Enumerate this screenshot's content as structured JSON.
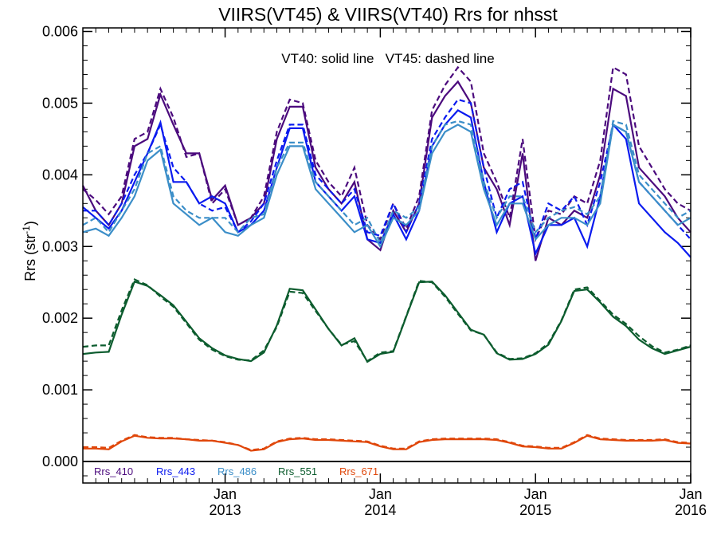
{
  "chart_data": {
    "type": "line",
    "title": "VIIRS(VT45) & VIIRS(VT40)  Rrs for nhsst",
    "annotation": "VT40: solid line   VT45: dashed line",
    "ylabel": "Rrs (str",
    "ylabel_sup": "-1",
    "ylabel_tail": ")",
    "ylim": [
      -0.0003,
      0.00605
    ],
    "xlim": [
      "2012-02",
      "2016-01"
    ],
    "y_ticks": [
      "0.000",
      "0.001",
      "0.002",
      "0.003",
      "0.004",
      "0.005",
      "0.006"
    ],
    "x_ticks": [
      {
        "month": "Jan",
        "year": "2013",
        "date": "2013-01"
      },
      {
        "month": "Jan",
        "year": "2014",
        "date": "2014-01"
      },
      {
        "month": "Jan",
        "year": "2015",
        "date": "2015-01"
      },
      {
        "month": "Jan",
        "year": "2016",
        "date": "2016-01"
      }
    ],
    "grid": false,
    "legend_position": "bottom-left",
    "x": [
      "2012-02",
      "2012-03",
      "2012-04",
      "2012-05",
      "2012-06",
      "2012-07",
      "2012-08",
      "2012-09",
      "2012-10",
      "2012-11",
      "2012-12",
      "2013-01",
      "2013-02",
      "2013-03",
      "2013-04",
      "2013-05",
      "2013-06",
      "2013-07",
      "2013-08",
      "2013-09",
      "2013-10",
      "2013-11",
      "2013-12",
      "2014-01",
      "2014-02",
      "2014-03",
      "2014-04",
      "2014-05",
      "2014-06",
      "2014-07",
      "2014-08",
      "2014-09",
      "2014-10",
      "2014-11",
      "2014-12",
      "2015-01",
      "2015-02",
      "2015-03",
      "2015-04",
      "2015-05",
      "2015-06",
      "2015-07",
      "2015-08",
      "2015-09",
      "2015-10",
      "2015-11",
      "2015-12",
      "2016-01"
    ],
    "series": [
      {
        "name": "Rrs_410",
        "color": "#4b0a7d",
        "vt40": [
          0.00385,
          0.0035,
          0.0033,
          0.0036,
          0.0044,
          0.0045,
          0.00512,
          0.0047,
          0.0043,
          0.0043,
          0.00365,
          0.00385,
          0.0033,
          0.0034,
          0.0036,
          0.0045,
          0.00495,
          0.00495,
          0.0041,
          0.0038,
          0.0036,
          0.0039,
          0.0031,
          0.00295,
          0.0035,
          0.0032,
          0.0036,
          0.0048,
          0.0051,
          0.0053,
          0.005,
          0.0041,
          0.0038,
          0.0033,
          0.0043,
          0.0028,
          0.0034,
          0.0033,
          0.0035,
          0.0034,
          0.004,
          0.0052,
          0.0051,
          0.0041,
          0.0039,
          0.0037,
          0.0034,
          0.0032
        ],
        "vt45": [
          0.0038,
          0.00365,
          0.00345,
          0.0037,
          0.0045,
          0.0046,
          0.0052,
          0.0048,
          0.00425,
          0.0043,
          0.0036,
          0.0038,
          0.0033,
          0.0034,
          0.0037,
          0.0046,
          0.00505,
          0.005,
          0.0042,
          0.0039,
          0.0037,
          0.0041,
          0.0033,
          0.0031,
          0.0036,
          0.00325,
          0.0037,
          0.0049,
          0.00525,
          0.0055,
          0.0053,
          0.0043,
          0.0039,
          0.0034,
          0.0045,
          0.0031,
          0.0035,
          0.00345,
          0.0037,
          0.0036,
          0.0042,
          0.0055,
          0.0054,
          0.0044,
          0.0041,
          0.0038,
          0.0036,
          0.0035
        ]
      },
      {
        "name": "Rrs_443",
        "color": "#0a1aef",
        "vt40": [
          0.00355,
          0.0034,
          0.00325,
          0.0035,
          0.0039,
          0.0043,
          0.00473,
          0.0039,
          0.0039,
          0.0036,
          0.0037,
          0.0036,
          0.0032,
          0.0033,
          0.0035,
          0.0041,
          0.00465,
          0.00465,
          0.0039,
          0.0037,
          0.0035,
          0.0037,
          0.0031,
          0.00305,
          0.00345,
          0.0031,
          0.0035,
          0.0044,
          0.0047,
          0.0049,
          0.0048,
          0.0039,
          0.0032,
          0.0036,
          0.0037,
          0.0029,
          0.0033,
          0.0033,
          0.0034,
          0.003,
          0.0037,
          0.0047,
          0.0045,
          0.0036,
          0.0034,
          0.0032,
          0.00305,
          0.00285
        ],
        "vt45": [
          0.0035,
          0.0035,
          0.0033,
          0.0036,
          0.004,
          0.0043,
          0.0047,
          0.0041,
          0.0039,
          0.0036,
          0.0035,
          0.00355,
          0.0032,
          0.00335,
          0.0036,
          0.0042,
          0.0047,
          0.0047,
          0.004,
          0.0038,
          0.0036,
          0.0038,
          0.0032,
          0.00315,
          0.0036,
          0.0032,
          0.0036,
          0.0045,
          0.0048,
          0.00505,
          0.005,
          0.0041,
          0.0034,
          0.0038,
          0.0039,
          0.0031,
          0.0036,
          0.0035,
          0.0037,
          0.0033,
          0.0039,
          0.0047,
          0.0046,
          0.0039,
          0.0037,
          0.0035,
          0.0033,
          0.0031
        ]
      },
      {
        "name": "Rrs_486",
        "color": "#3b8ec8",
        "vt40": [
          0.0032,
          0.00325,
          0.00315,
          0.0034,
          0.0037,
          0.0042,
          0.00435,
          0.0036,
          0.00345,
          0.0033,
          0.0034,
          0.0032,
          0.00315,
          0.0033,
          0.0034,
          0.004,
          0.0044,
          0.0044,
          0.0038,
          0.0036,
          0.0034,
          0.0032,
          0.0033,
          0.003,
          0.0034,
          0.0033,
          0.0035,
          0.0043,
          0.0046,
          0.0047,
          0.0046,
          0.0038,
          0.0033,
          0.0036,
          0.0036,
          0.0031,
          0.0033,
          0.0034,
          0.0034,
          0.0033,
          0.0036,
          0.0047,
          0.0046,
          0.0039,
          0.0037,
          0.0035,
          0.0033,
          0.0034
        ],
        "vt45": [
          0.0033,
          0.0034,
          0.0032,
          0.0035,
          0.0038,
          0.0043,
          0.0044,
          0.0037,
          0.0035,
          0.0034,
          0.0034,
          0.0034,
          0.0032,
          0.0034,
          0.00345,
          0.0041,
          0.00445,
          0.00445,
          0.0039,
          0.0037,
          0.0035,
          0.0033,
          0.0034,
          0.00305,
          0.0035,
          0.0034,
          0.00355,
          0.0044,
          0.0047,
          0.00475,
          0.0047,
          0.0039,
          0.0034,
          0.0037,
          0.0037,
          0.0032,
          0.0034,
          0.0035,
          0.00355,
          0.00345,
          0.0037,
          0.00475,
          0.0047,
          0.004,
          0.0038,
          0.0036,
          0.0034,
          0.0035
        ]
      },
      {
        "name": "Rrs_551",
        "color": "#0c5c2e",
        "vt40": [
          0.0015,
          0.00152,
          0.00153,
          0.00205,
          0.00251,
          0.00245,
          0.00232,
          0.00218,
          0.00195,
          0.00172,
          0.00158,
          0.00148,
          0.00143,
          0.0014,
          0.00152,
          0.0019,
          0.00241,
          0.00239,
          0.00212,
          0.00185,
          0.00162,
          0.00172,
          0.00139,
          0.0015,
          0.00153,
          0.00202,
          0.0025,
          0.00251,
          0.00232,
          0.00208,
          0.00184,
          0.00177,
          0.00151,
          0.00142,
          0.00143,
          0.0015,
          0.00163,
          0.00196,
          0.00238,
          0.0024,
          0.00222,
          0.00202,
          0.00189,
          0.0017,
          0.00158,
          0.0015,
          0.00155,
          0.0016
        ],
        "vt45": [
          0.0016,
          0.00162,
          0.00162,
          0.00211,
          0.00254,
          0.00246,
          0.0023,
          0.00216,
          0.00193,
          0.0017,
          0.00156,
          0.00147,
          0.00142,
          0.00141,
          0.00155,
          0.00188,
          0.00237,
          0.00235,
          0.0021,
          0.00185,
          0.00163,
          0.00168,
          0.0014,
          0.00152,
          0.00154,
          0.00203,
          0.00252,
          0.0025,
          0.0023,
          0.00206,
          0.00183,
          0.00177,
          0.00152,
          0.00143,
          0.00144,
          0.00151,
          0.00165,
          0.00197,
          0.0024,
          0.00243,
          0.00224,
          0.00205,
          0.00192,
          0.00175,
          0.00161,
          0.00152,
          0.00156,
          0.00162
        ]
      },
      {
        "name": "Rrs_671",
        "color": "#e0470a",
        "vt40": [
          0.00018,
          0.00018,
          0.00017,
          0.00028,
          0.00036,
          0.00033,
          0.00032,
          0.00032,
          0.00031,
          0.00029,
          0.00029,
          0.00026,
          0.00023,
          0.00015,
          0.00017,
          0.00027,
          0.00031,
          0.00032,
          0.0003,
          0.0003,
          0.00029,
          0.00028,
          0.00027,
          0.00021,
          0.00017,
          0.00017,
          0.00027,
          0.0003,
          0.00031,
          0.00031,
          0.00031,
          0.00031,
          0.0003,
          0.00026,
          0.00021,
          0.0002,
          0.00018,
          0.00018,
          0.00026,
          0.00036,
          0.00031,
          0.0003,
          0.00029,
          0.00029,
          0.00029,
          0.0003,
          0.00026,
          0.00025
        ],
        "vt45": [
          0.0002,
          0.0002,
          0.00019,
          0.00029,
          0.00037,
          0.00034,
          0.00033,
          0.00033,
          0.00031,
          0.0003,
          0.00029,
          0.00027,
          0.00023,
          0.00016,
          0.00018,
          0.00028,
          0.00032,
          0.00033,
          0.00031,
          0.00031,
          0.0003,
          0.00029,
          0.00028,
          0.00022,
          0.00018,
          0.00018,
          0.00028,
          0.00031,
          0.00032,
          0.00032,
          0.00032,
          0.00032,
          0.00031,
          0.00027,
          0.00022,
          0.00021,
          0.00019,
          0.00019,
          0.00027,
          0.00037,
          0.00032,
          0.00031,
          0.0003,
          0.0003,
          0.0003,
          0.00031,
          0.00027,
          0.00026
        ]
      }
    ]
  }
}
